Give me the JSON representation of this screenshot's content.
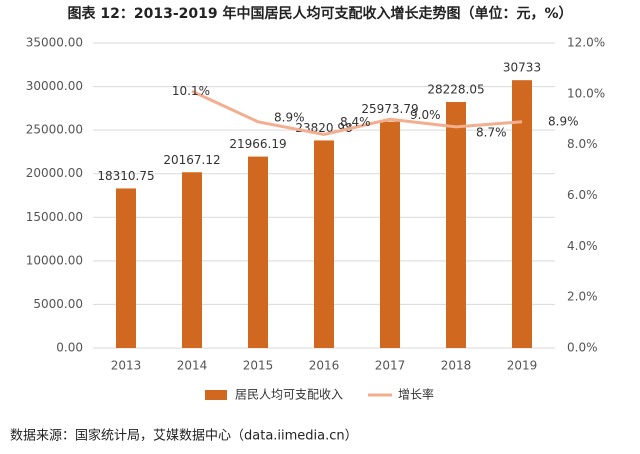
{
  "chart_data": {
    "type": "bar-line",
    "title": "图表 12：2013-2019 年中国居民人均可支配收入增长走势图（单位：元，%）",
    "source": "数据来源：国家统计局，艾媒数据中心（data.iimedia.cn）",
    "categories": [
      "2013",
      "2014",
      "2015",
      "2016",
      "2017",
      "2018",
      "2019"
    ],
    "series": [
      {
        "name": "居民人均可支配收入",
        "type": "bar",
        "color": "#d0691f",
        "values": [
          18310.75,
          20167.12,
          21966.19,
          23820.98,
          25973.79,
          28228.05,
          30733
        ]
      },
      {
        "name": "增长率",
        "type": "line",
        "axis": "y2",
        "color": "#f2ae8e",
        "values": [
          null,
          10.1,
          8.9,
          8.4,
          9.0,
          8.7,
          8.9
        ],
        "value_labels": [
          null,
          "10.1%",
          "8.9%",
          "8.4%",
          "9.0%",
          "8.7%",
          "8.9%"
        ]
      }
    ],
    "ylim": [
      0,
      35000
    ],
    "yticks": [
      {
        "value": 0,
        "label": "0.00"
      },
      {
        "value": 5000,
        "label": "5000.00"
      },
      {
        "value": 10000,
        "label": "10000.00"
      },
      {
        "value": 15000,
        "label": "15000.00"
      },
      {
        "value": 20000,
        "label": "20000.00"
      },
      {
        "value": 25000,
        "label": "25000.00"
      },
      {
        "value": 30000,
        "label": "30000.00"
      },
      {
        "value": 35000,
        "label": "35000.00"
      }
    ],
    "y2lim": [
      0,
      12
    ],
    "y2ticks": [
      {
        "value": 0,
        "label": "0.0%"
      },
      {
        "value": 2,
        "label": "2.0%"
      },
      {
        "value": 4,
        "label": "4.0%"
      },
      {
        "value": 6,
        "label": "6.0%"
      },
      {
        "value": 8,
        "label": "8.0%"
      },
      {
        "value": 10,
        "label": "10.0%"
      },
      {
        "value": 12,
        "label": "12.0%"
      }
    ],
    "grid": true,
    "legend": "bottom"
  }
}
